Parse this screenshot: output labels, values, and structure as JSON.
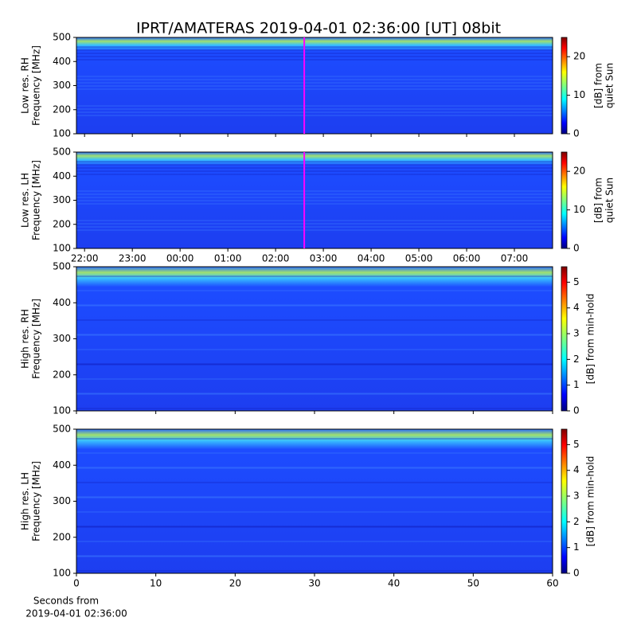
{
  "title": "IPRT/AMATERAS 2019-04-01 02:36:00 [UT]   08bit",
  "chart_data": [
    {
      "type": "heatmap",
      "ylabel": [
        "Low res. RH",
        "Frequency [MHz]"
      ],
      "ylim": [
        100,
        500
      ],
      "yticks": [
        100,
        200,
        300,
        400,
        500
      ],
      "xlim": [
        21.83,
        31.8
      ],
      "xticks": [
        22,
        23,
        24,
        25,
        26,
        27,
        28,
        29,
        30,
        31
      ],
      "xtick_labels": false,
      "marker": {
        "x": 26.6,
        "color": "#ff00ff"
      },
      "colormap": "jet",
      "colorbar": {
        "label": [
          "[dB] from",
          "quiet Sun"
        ],
        "lim": [
          0,
          25
        ],
        "ticks": [
          0,
          10,
          20
        ]
      }
    },
    {
      "type": "heatmap",
      "ylabel": [
        "Low res. LH",
        "Frequency [MHz]"
      ],
      "ylim": [
        100,
        500
      ],
      "yticks": [
        100,
        200,
        300,
        400,
        500
      ],
      "xlim": [
        21.83,
        31.8
      ],
      "xticks": [
        {
          "value": 22,
          "label": "22:00"
        },
        {
          "value": 23,
          "label": "23:00"
        },
        {
          "value": 24,
          "label": "00:00"
        },
        {
          "value": 25,
          "label": "01:00"
        },
        {
          "value": 26,
          "label": "02:00"
        },
        {
          "value": 27,
          "label": "03:00"
        },
        {
          "value": 28,
          "label": "04:00"
        },
        {
          "value": 29,
          "label": "05:00"
        },
        {
          "value": 30,
          "label": "06:00"
        },
        {
          "value": 31,
          "label": "07:00"
        }
      ],
      "xtick_labels": true,
      "marker": {
        "x": 26.6,
        "color": "#ff00ff"
      },
      "colormap": "jet",
      "colorbar": {
        "label": [
          "[dB] from",
          "quiet Sun"
        ],
        "lim": [
          0,
          25
        ],
        "ticks": [
          0,
          10,
          20
        ]
      }
    },
    {
      "type": "heatmap",
      "ylabel": [
        "High res. RH",
        "Frequency [MHz]"
      ],
      "ylim": [
        100,
        500
      ],
      "yticks": [
        100,
        200,
        300,
        400,
        500
      ],
      "xlim": [
        0,
        60
      ],
      "xticks": [
        0,
        10,
        20,
        30,
        40,
        50,
        60
      ],
      "xtick_labels": false,
      "colormap": "jet",
      "colorbar": {
        "label": [
          "[dB] from min-hold"
        ],
        "lim": [
          0,
          5.6
        ],
        "ticks": [
          0,
          1,
          2,
          3,
          4,
          5
        ]
      }
    },
    {
      "type": "heatmap",
      "ylabel": [
        "High res. LH",
        "Frequency [MHz]"
      ],
      "ylim": [
        100,
        500
      ],
      "yticks": [
        100,
        200,
        300,
        400,
        500
      ],
      "xlim": [
        0,
        60
      ],
      "xticks": [
        0,
        10,
        20,
        30,
        40,
        50,
        60
      ],
      "xtick_labels": true,
      "colormap": "jet",
      "xlabel": [
        "Seconds from",
        "2019-04-01 02:36:00"
      ],
      "colorbar": {
        "label": [
          "[dB] from min-hold"
        ],
        "lim": [
          0,
          5.6
        ],
        "ticks": [
          0,
          1,
          2,
          3,
          4,
          5
        ]
      }
    }
  ]
}
